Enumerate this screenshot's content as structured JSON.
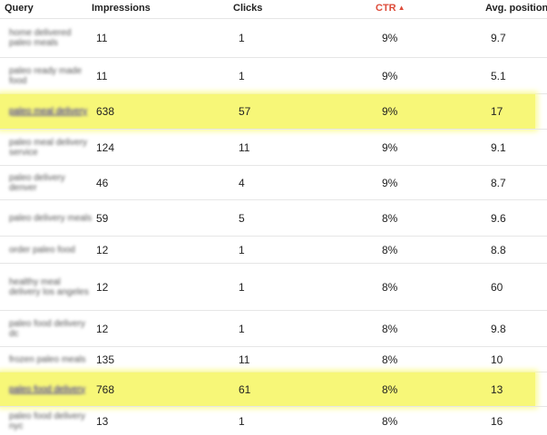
{
  "columns": {
    "query": "Query",
    "impressions": "Impressions",
    "clicks": "Clicks",
    "ctr": "CTR",
    "avg_position": "Avg. position"
  },
  "sort_indicator": "▲",
  "highlight_color": "#f7f778",
  "rows": [
    {
      "query": "home delivered paleo meals",
      "impressions": "11",
      "clicks": "1",
      "ctr": "9%",
      "avg_position": "9.7",
      "highlighted": false
    },
    {
      "query": "paleo ready made food",
      "impressions": "11",
      "clicks": "1",
      "ctr": "9%",
      "avg_position": "5.1",
      "highlighted": false
    },
    {
      "query": "paleo meal delivery",
      "impressions": "638",
      "clicks": "57",
      "ctr": "9%",
      "avg_position": "17",
      "highlighted": true
    },
    {
      "query": "paleo meal delivery service",
      "impressions": "124",
      "clicks": "11",
      "ctr": "9%",
      "avg_position": "9.1",
      "highlighted": false
    },
    {
      "query": "paleo delivery denver",
      "impressions": "46",
      "clicks": "4",
      "ctr": "9%",
      "avg_position": "8.7",
      "highlighted": false
    },
    {
      "query": "paleo delivery meals",
      "impressions": "59",
      "clicks": "5",
      "ctr": "8%",
      "avg_position": "9.6",
      "highlighted": false
    },
    {
      "query": "order paleo food",
      "impressions": "12",
      "clicks": "1",
      "ctr": "8%",
      "avg_position": "8.8",
      "highlighted": false
    },
    {
      "query": "healthy meal delivery los angeles",
      "impressions": "12",
      "clicks": "1",
      "ctr": "8%",
      "avg_position": "60",
      "highlighted": false
    },
    {
      "query": "paleo food delivery dc",
      "impressions": "12",
      "clicks": "1",
      "ctr": "8%",
      "avg_position": "9.8",
      "highlighted": false
    },
    {
      "query": "frozen paleo meals",
      "impressions": "135",
      "clicks": "11",
      "ctr": "8%",
      "avg_position": "10",
      "highlighted": false
    },
    {
      "query": "paleo food delivery",
      "impressions": "768",
      "clicks": "61",
      "ctr": "8%",
      "avg_position": "13",
      "highlighted": true
    },
    {
      "query": "paleo food delivery nyc",
      "impressions": "13",
      "clicks": "1",
      "ctr": "8%",
      "avg_position": "16",
      "highlighted": false
    }
  ]
}
